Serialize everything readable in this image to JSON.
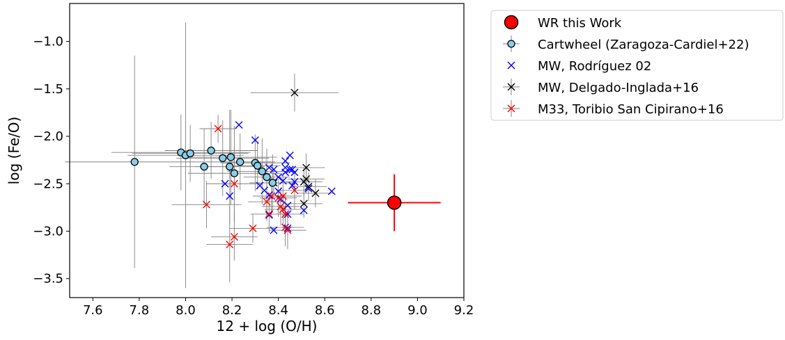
{
  "chart_data": {
    "type": "scatter",
    "xlabel": "12 + log (O/H)",
    "ylabel": "log (Fe/O)",
    "xlim": [
      7.5,
      9.2
    ],
    "ylim": [
      -3.7,
      -0.6
    ],
    "xticks": [
      7.6,
      7.8,
      8.0,
      8.2,
      8.4,
      8.6,
      8.8,
      9.0,
      9.2
    ],
    "xtick_labels": [
      "7.6",
      "7.8",
      "8.0",
      "8.2",
      "8.4",
      "8.6",
      "8.8",
      "9.0",
      "9.2"
    ],
    "yticks": [
      -1.0,
      -1.5,
      -2.0,
      -2.5,
      -3.0,
      -3.5
    ],
    "ytick_labels": [
      "−1.0",
      "−1.5",
      "−2.0",
      "−2.5",
      "−3.0",
      "−3.5"
    ],
    "grid": false,
    "legend_position": "outside-right-top",
    "series": [
      {
        "name": "WR this Work",
        "marker": "circle-large",
        "color": "#ff0000",
        "edge": "#000000",
        "points": [
          {
            "x": 8.9,
            "y": -2.7,
            "xerr": 0.2,
            "yerr": 0.3
          }
        ]
      },
      {
        "name": "Cartwheel (Zaragoza-Cardiel+22)",
        "marker": "circle",
        "color": "#87ceeb",
        "edge": "#000000",
        "errcolor": "#808080",
        "points": [
          {
            "x": 7.78,
            "y": -2.27,
            "xerr": 0.3,
            "yerr": 1.12
          },
          {
            "x": 7.98,
            "y": -2.17,
            "xerr": 0.3,
            "yerr": 0.4
          },
          {
            "x": 8.0,
            "y": -2.2,
            "xerr": 0.25,
            "yerr": 1.4
          },
          {
            "x": 8.02,
            "y": -2.18,
            "xerr": 0.25,
            "yerr": 0.3
          },
          {
            "x": 8.08,
            "y": -2.32,
            "xerr": 0.15,
            "yerr": 0.4
          },
          {
            "x": 8.11,
            "y": -2.15,
            "xerr": 0.2,
            "yerr": 0.3
          },
          {
            "x": 8.16,
            "y": -2.23,
            "xerr": 0.2,
            "yerr": 0.4
          },
          {
            "x": 8.19,
            "y": -2.32,
            "xerr": 0.15,
            "yerr": 0.6
          },
          {
            "x": 8.195,
            "y": -2.22,
            "xerr": 0.2,
            "yerr": 0.5
          },
          {
            "x": 8.21,
            "y": -2.39,
            "xerr": 0.2,
            "yerr": 0.5
          },
          {
            "x": 8.235,
            "y": -2.27,
            "xerr": 0.15,
            "yerr": 0.3
          },
          {
            "x": 8.3,
            "y": -2.28,
            "xerr": 0.15,
            "yerr": 0.3
          },
          {
            "x": 8.31,
            "y": -2.31,
            "xerr": 0.1,
            "yerr": 0.25
          },
          {
            "x": 8.33,
            "y": -2.37,
            "xerr": 0.15,
            "yerr": 0.35
          },
          {
            "x": 8.35,
            "y": -2.43,
            "xerr": 0.1,
            "yerr": 0.3
          },
          {
            "x": 8.375,
            "y": -2.49,
            "xerr": 0.1,
            "yerr": 0.3
          }
        ]
      },
      {
        "name": "MW, Rodríguez 02",
        "marker": "x",
        "color": "#0000ff",
        "points": [
          {
            "x": 8.23,
            "y": -1.88
          },
          {
            "x": 8.3,
            "y": -2.04
          },
          {
            "x": 8.17,
            "y": -2.5
          },
          {
            "x": 8.19,
            "y": -2.63
          },
          {
            "x": 8.32,
            "y": -2.52
          },
          {
            "x": 8.34,
            "y": -2.57
          },
          {
            "x": 8.36,
            "y": -2.62
          },
          {
            "x": 8.36,
            "y": -2.33
          },
          {
            "x": 8.38,
            "y": -2.35
          },
          {
            "x": 8.4,
            "y": -2.43
          },
          {
            "x": 8.4,
            "y": -2.58
          },
          {
            "x": 8.41,
            "y": -2.66
          },
          {
            "x": 8.42,
            "y": -2.47
          },
          {
            "x": 8.43,
            "y": -2.33
          },
          {
            "x": 8.43,
            "y": -2.26
          },
          {
            "x": 8.43,
            "y": -2.38
          },
          {
            "x": 8.45,
            "y": -2.2
          },
          {
            "x": 8.45,
            "y": -2.35
          },
          {
            "x": 8.46,
            "y": -2.35
          },
          {
            "x": 8.47,
            "y": -2.38
          },
          {
            "x": 8.46,
            "y": -2.52
          },
          {
            "x": 8.47,
            "y": -2.48
          },
          {
            "x": 8.44,
            "y": -2.73
          },
          {
            "x": 8.44,
            "y": -2.82
          },
          {
            "x": 8.44,
            "y": -2.97
          },
          {
            "x": 8.38,
            "y": -2.99
          },
          {
            "x": 8.36,
            "y": -2.83
          },
          {
            "x": 8.51,
            "y": -2.78
          },
          {
            "x": 8.53,
            "y": -2.55
          },
          {
            "x": 8.63,
            "y": -2.58
          }
        ]
      },
      {
        "name": "MW, Delgado-Inglada+16",
        "marker": "x",
        "color": "#000000",
        "errcolor": "#808080",
        "points": [
          {
            "x": 8.47,
            "y": -1.54,
            "xerr": 0.19,
            "yerr": 0.2
          },
          {
            "x": 8.51,
            "y": -2.48,
            "xerr": 0.08,
            "yerr": 0.15
          },
          {
            "x": 8.52,
            "y": -2.33,
            "xerr": 0.08,
            "yerr": 0.15
          },
          {
            "x": 8.52,
            "y": -2.45,
            "xerr": 0.08,
            "yerr": 0.15
          },
          {
            "x": 8.53,
            "y": -2.53,
            "xerr": 0.08,
            "yerr": 0.15
          },
          {
            "x": 8.56,
            "y": -2.6,
            "xerr": 0.08,
            "yerr": 0.15
          },
          {
            "x": 8.51,
            "y": -2.71,
            "xerr": 0.08,
            "yerr": 0.15
          },
          {
            "x": 8.38,
            "y": -2.49,
            "xerr": 0.08,
            "yerr": 0.15
          }
        ]
      },
      {
        "name": "M33, Toribio San Cipirano+16",
        "marker": "x",
        "color": "#ff0000",
        "errcolor": "#808080",
        "points": [
          {
            "x": 8.14,
            "y": -1.92,
            "xerr": 0.08,
            "yerr": 0.15
          },
          {
            "x": 8.09,
            "y": -2.72,
            "xerr": 0.15,
            "yerr": 0.25
          },
          {
            "x": 8.21,
            "y": -2.5,
            "xerr": 0.12,
            "yerr": 0.4
          },
          {
            "x": 8.21,
            "y": -3.06,
            "xerr": 0.1,
            "yerr": 0.25
          },
          {
            "x": 8.19,
            "y": -3.14,
            "xerr": 0.1,
            "yerr": 0.4
          },
          {
            "x": 8.29,
            "y": -2.97,
            "xerr": 0.1,
            "yerr": 0.15
          },
          {
            "x": 8.35,
            "y": -2.69,
            "xerr": 0.08,
            "yerr": 0.2
          },
          {
            "x": 8.36,
            "y": -2.82,
            "xerr": 0.08,
            "yerr": 0.2
          },
          {
            "x": 8.37,
            "y": -2.63,
            "xerr": 0.08,
            "yerr": 0.2
          },
          {
            "x": 8.4,
            "y": -2.65,
            "xerr": 0.08,
            "yerr": 0.2
          },
          {
            "x": 8.42,
            "y": -2.63,
            "xerr": 0.08,
            "yerr": 0.25
          },
          {
            "x": 8.42,
            "y": -2.77,
            "xerr": 0.08,
            "yerr": 0.2
          },
          {
            "x": 8.43,
            "y": -2.82,
            "xerr": 0.08,
            "yerr": 0.2
          },
          {
            "x": 8.43,
            "y": -2.96,
            "xerr": 0.08,
            "yerr": 0.2
          },
          {
            "x": 8.44,
            "y": -2.99,
            "xerr": 0.08,
            "yerr": 0.2
          },
          {
            "x": 8.47,
            "y": -2.57,
            "xerr": 0.08,
            "yerr": 0.2
          },
          {
            "x": 8.41,
            "y": -2.74,
            "xerr": 0.08,
            "yerr": 0.2
          }
        ]
      }
    ]
  }
}
